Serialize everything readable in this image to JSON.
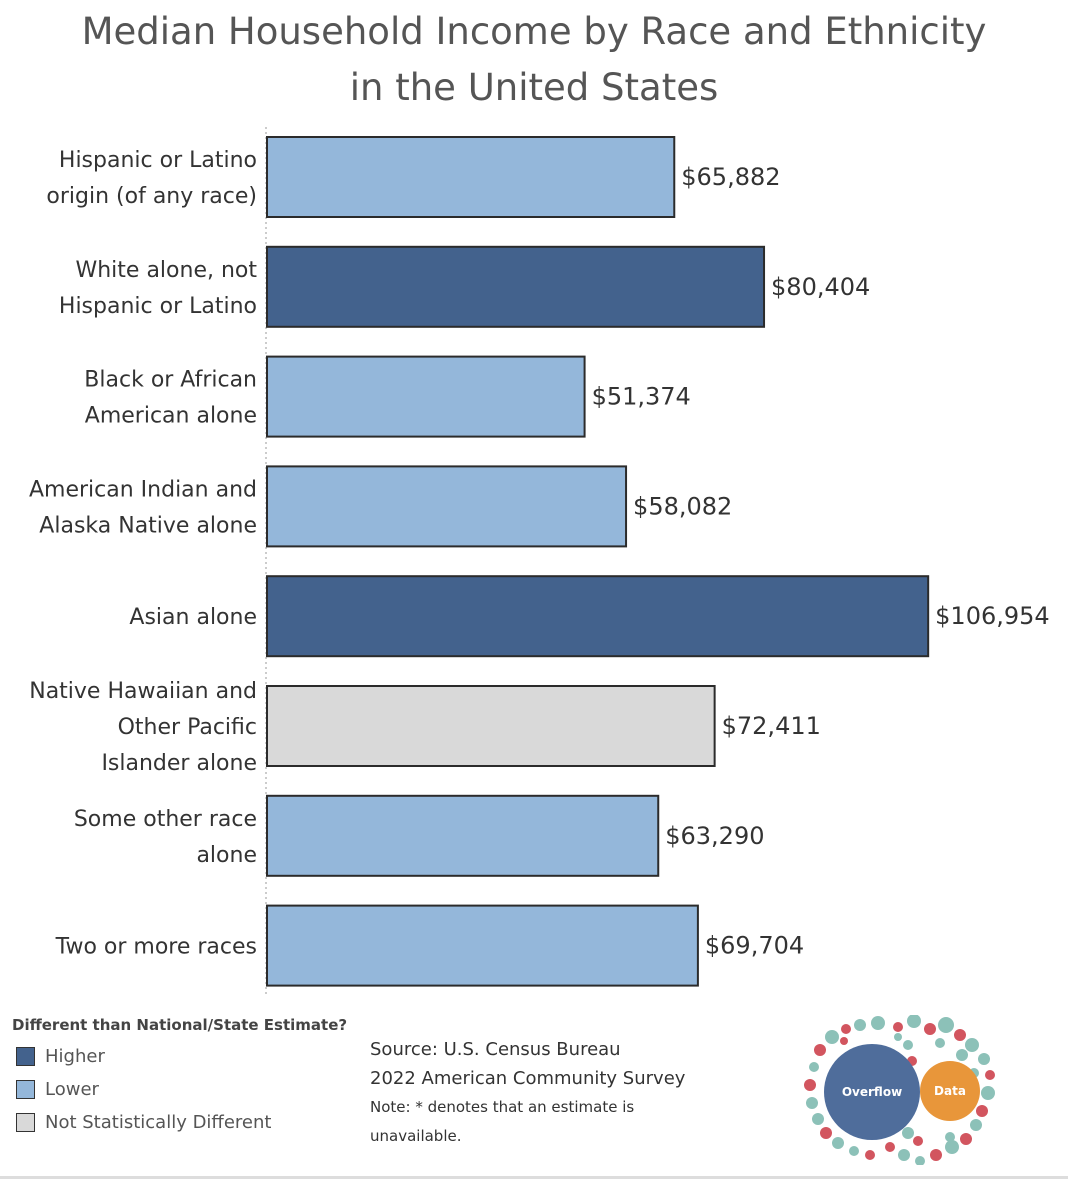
{
  "chart_data": {
    "type": "bar",
    "orientation": "horizontal",
    "title_lines": [
      "Median Household Income by Race and Ethnicity",
      "in the United States"
    ],
    "categories": [
      [
        "Hispanic or Latino",
        "origin (of any race)"
      ],
      [
        "White alone, not",
        "Hispanic or Latino"
      ],
      [
        "Black or African",
        "American alone"
      ],
      [
        "American Indian and",
        "Alaska Native alone"
      ],
      [
        "Asian alone"
      ],
      [
        "Native Hawaiian and",
        "Other Pacific",
        "Islander alone"
      ],
      [
        "Some other race",
        "alone"
      ],
      [
        "Two or more races"
      ]
    ],
    "values": [
      65882,
      80404,
      51374,
      58082,
      106954,
      72411,
      63290,
      69704
    ],
    "value_labels": [
      "$65,882",
      "$80,404",
      "$51,374",
      "$58,082",
      "$106,954",
      "$72,411",
      "$63,290",
      "$69,704"
    ],
    "status": [
      "lower",
      "higher",
      "lower",
      "lower",
      "higher",
      "not_different",
      "lower",
      "lower"
    ],
    "colors": {
      "higher": "#43628d",
      "lower": "#94b7da",
      "not_different": "#d9d9d9",
      "border": "#2b2b2b"
    },
    "xlim": [
      0,
      110000
    ],
    "grid": false,
    "legend": {
      "title": "Different than National/State Estimate?",
      "placement": "bottom-left",
      "items": [
        {
          "label": "Higher",
          "key": "higher"
        },
        {
          "label": "Lower",
          "key": "lower"
        },
        {
          "label": "Not Statistically Different",
          "key": "not_different"
        }
      ]
    }
  },
  "source": {
    "line1": "Source: U.S. Census Bureau",
    "line2": "2022 American Community Survey",
    "line3": "Note: * denotes that an estimate is",
    "line4": "unavailable."
  },
  "logo": {
    "text_left": "Overflow",
    "text_right": "Data",
    "color_left": "#4f6d9b",
    "color_right": "#e8963a"
  }
}
